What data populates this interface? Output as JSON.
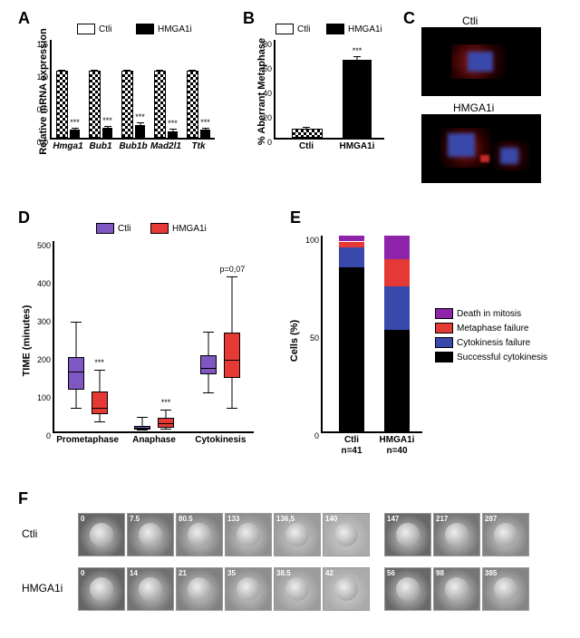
{
  "panels": {
    "A": {
      "ylabel": "Relative mRNA expression",
      "ylim": [
        0,
        1.5
      ],
      "ytick_step": 0.5,
      "categories": [
        "Hmga1",
        "Bub1",
        "Bub1b",
        "Mad2l1",
        "Ttk"
      ],
      "series": [
        {
          "name": "Ctli",
          "pattern": "hatch",
          "values": [
            1.0,
            1.0,
            1.0,
            1.0,
            1.0
          ],
          "err": [
            0.03,
            0.03,
            0.03,
            0.03,
            0.03
          ]
        },
        {
          "name": "HMGA1i",
          "pattern": "solid",
          "values": [
            0.12,
            0.15,
            0.2,
            0.1,
            0.12
          ],
          "err": [
            0.02,
            0.02,
            0.02,
            0.02,
            0.02
          ],
          "sig": [
            "***",
            "***",
            "***",
            "***",
            "***"
          ]
        }
      ],
      "legend_labels": {
        "ctli": "Ctli",
        "hmga1i": "HMGA1i"
      }
    },
    "B": {
      "ylabel": "% Aberrant Metaphase",
      "ylim": [
        0,
        80
      ],
      "ytick_step": 20,
      "categories": [
        "Ctli",
        "HMGA1i"
      ],
      "bars": [
        {
          "label": "Ctli",
          "value": 6,
          "err": 2,
          "pattern": "hatch"
        },
        {
          "label": "HMGA1i",
          "value": 64,
          "err": 2,
          "pattern": "solid",
          "sig": "***"
        }
      ],
      "legend_labels": {
        "ctli": "Ctli",
        "hmga1i": "HMGA1i"
      }
    },
    "C": {
      "labels": {
        "top": "Ctli",
        "bottom": "HMGA1i"
      }
    },
    "D": {
      "ylabel": "TIME (minutes)",
      "ylim": [
        0,
        500
      ],
      "ytick_step": 100,
      "categories": [
        "Prometaphase",
        "Anaphase",
        "Cytokinesis"
      ],
      "series_names": {
        "ctli": "Ctli",
        "hmga1i": "HMGA1i"
      },
      "colors": {
        "ctli": "#7e57c2",
        "hmga1i": "#e53935"
      },
      "boxes": [
        {
          "cat": 0,
          "series": "ctli",
          "min": 60,
          "q1": 110,
          "med": 155,
          "q3": 190,
          "max": 285,
          "sig": ""
        },
        {
          "cat": 0,
          "series": "hmga1i",
          "min": 25,
          "q1": 45,
          "med": 60,
          "q3": 100,
          "max": 160,
          "sig": "***"
        },
        {
          "cat": 1,
          "series": "ctli",
          "min": 2,
          "q1": 4,
          "med": 6,
          "q3": 10,
          "max": 35,
          "sig": ""
        },
        {
          "cat": 1,
          "series": "hmga1i",
          "min": 4,
          "q1": 10,
          "med": 18,
          "q3": 30,
          "max": 55,
          "sig": "***"
        },
        {
          "cat": 2,
          "series": "ctli",
          "min": 100,
          "q1": 150,
          "med": 165,
          "q3": 195,
          "max": 260,
          "sig": ""
        },
        {
          "cat": 2,
          "series": "hmga1i",
          "min": 60,
          "q1": 140,
          "med": 185,
          "q3": 255,
          "max": 404,
          "sig": "p=0,07"
        }
      ]
    },
    "E": {
      "ylabel": "Cells (%)",
      "ylim": [
        0,
        100
      ],
      "ytick_step": 50,
      "categories": [
        "Ctli",
        "HMGA1i"
      ],
      "n_labels": [
        "n=41",
        "n=40"
      ],
      "legend": [
        {
          "label": "Death in mitosis",
          "color": "#8e24aa"
        },
        {
          "label": "Metaphase failure",
          "color": "#e53935"
        },
        {
          "label": "Cytokinesis failure",
          "color": "#3949ab"
        },
        {
          "label": "Successful cytokinesis",
          "color": "#000000"
        }
      ],
      "stacks": [
        {
          "cat": "Ctli",
          "segs": [
            {
              "color": "#000000",
              "pct": 84
            },
            {
              "color": "#3949ab",
              "pct": 10
            },
            {
              "color": "#e53935",
              "pct": 3
            },
            {
              "color": "#8e24aa",
              "pct": 3
            }
          ]
        },
        {
          "cat": "HMGA1i",
          "segs": [
            {
              "color": "#000000",
              "pct": 52
            },
            {
              "color": "#3949ab",
              "pct": 22
            },
            {
              "color": "#e53935",
              "pct": 14
            },
            {
              "color": "#8e24aa",
              "pct": 12
            }
          ]
        }
      ]
    },
    "F": {
      "rows": [
        {
          "label": "Ctli",
          "times": [
            "0",
            "7.5",
            "80.5",
            "133",
            "136,5",
            "140",
            "147",
            "217",
            "287"
          ]
        },
        {
          "label": "HMGA1i",
          "times": [
            "0",
            "14",
            "21",
            "35",
            "38.5",
            "42",
            "56",
            "98",
            "385"
          ]
        }
      ]
    }
  }
}
